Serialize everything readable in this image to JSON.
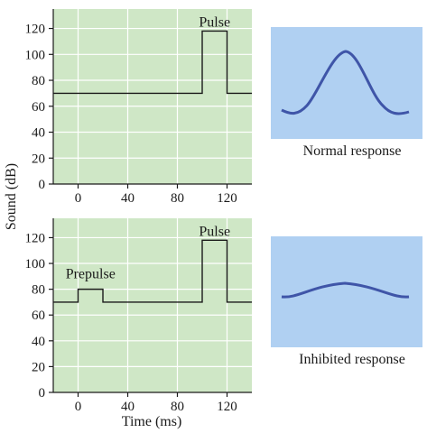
{
  "colors": {
    "plot_background": "#cfe7c6",
    "grid": "#ffffff",
    "axis": "#1a1a1a",
    "series_line": "#1a1a1a",
    "response_panel_background": "#b0d0f2",
    "response_curve": "#3f55a8"
  },
  "ylabel": "Sound (dB)",
  "xlabel": "Time (ms)",
  "chart_data": [
    {
      "type": "line",
      "id": "top",
      "xlim": [
        -20,
        140
      ],
      "ylim": [
        0,
        135
      ],
      "x_ticks": [
        0,
        40,
        80,
        120
      ],
      "y_ticks": [
        0,
        20,
        40,
        60,
        80,
        100,
        120
      ],
      "grid": true,
      "series": [
        {
          "x": [
            -20,
            100,
            100,
            120,
            120,
            140
          ],
          "y": [
            70,
            70,
            118,
            118,
            70,
            70
          ]
        }
      ],
      "annotations": [
        {
          "text": "Pulse",
          "x": 110,
          "y": 118
        }
      ]
    },
    {
      "type": "line",
      "id": "bottom",
      "xlim": [
        -20,
        140
      ],
      "ylim": [
        0,
        135
      ],
      "x_ticks": [
        0,
        40,
        80,
        120
      ],
      "y_ticks": [
        0,
        20,
        40,
        60,
        80,
        100,
        120
      ],
      "grid": true,
      "series": [
        {
          "x": [
            -20,
            0,
            0,
            20,
            20,
            100,
            100,
            120,
            120,
            140
          ],
          "y": [
            70,
            70,
            80,
            80,
            70,
            70,
            118,
            118,
            70,
            70
          ]
        }
      ],
      "annotations": [
        {
          "text": "Prepulse",
          "x": 10,
          "y": 80
        },
        {
          "text": "Pulse",
          "x": 110,
          "y": 118
        }
      ]
    }
  ],
  "responses": [
    {
      "caption": "Normal response",
      "curve": "peak",
      "relative_amplitude": 1.0
    },
    {
      "caption": "Inhibited response",
      "curve": "bump",
      "relative_amplitude": 0.25
    }
  ]
}
